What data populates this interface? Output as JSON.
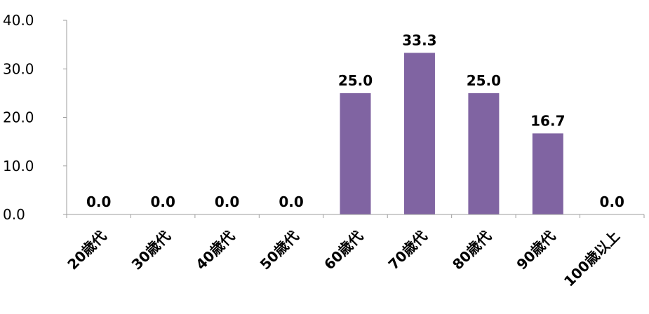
{
  "chart_data": {
    "type": "bar",
    "title": "",
    "xlabel": "",
    "ylabel": "",
    "categories": [
      "20歳代",
      "30歳代",
      "40歳代",
      "50歳代",
      "60歳代",
      "70歳代",
      "80歳代",
      "90歳代",
      "100歳以上"
    ],
    "values": [
      0.0,
      0.0,
      0.0,
      0.0,
      25.0,
      33.3,
      25.0,
      16.7,
      0.0
    ],
    "value_labels": [
      "0.0",
      "0.0",
      "0.0",
      "0.0",
      "25.0",
      "33.3",
      "25.0",
      "16.7",
      "0.0"
    ],
    "ylim": [
      0,
      40
    ],
    "yticks": [
      "0.0",
      "10.0",
      "20.0",
      "30.0",
      "40.0"
    ],
    "grid": false,
    "legend": "none",
    "bar_color": "#8064a2"
  }
}
